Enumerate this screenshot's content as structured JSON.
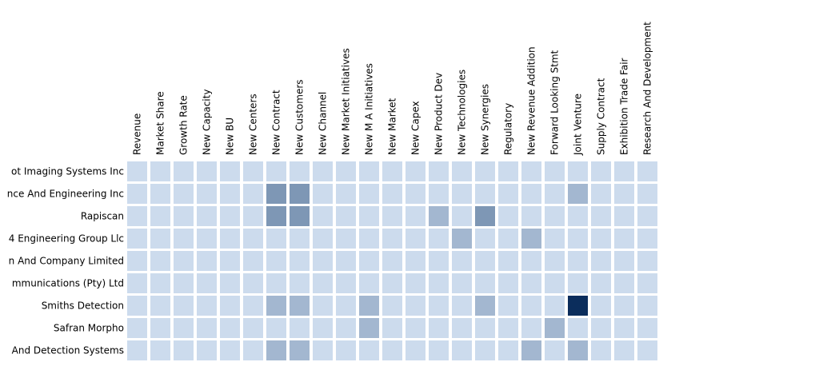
{
  "chart_data": {
    "type": "heatmap",
    "title": "",
    "xlabel": "",
    "ylabel": "",
    "columns": [
      "Revenue",
      "Market Share",
      "Growth Rate",
      "New Capacity",
      "New BU",
      "New Centers",
      "New Contract",
      "New Customers",
      "New Channel",
      "New Market Initiatives",
      "New M A Initiatives",
      "New Market",
      "New Capex",
      "New Product Dev",
      "New Technologies",
      "New Synergies",
      "Regulatory",
      "New Revenue Addition",
      "Forward Looking Stmt",
      "Joint Venture",
      "Supply Contract",
      "Exhibition Trade Fair",
      "Research And Development"
    ],
    "rows": [
      "ot Imaging Systems Inc",
      "nce And Engineering Inc",
      "Rapiscan",
      "4 Engineering Group Llc",
      "n And Company Limited",
      "mmunications (Pty) Ltd",
      "Smiths Detection",
      "Safran Morpho",
      "And Detection Systems"
    ],
    "values": [
      [
        0,
        0,
        0,
        0,
        0,
        0,
        0,
        0,
        0,
        0,
        0,
        0,
        0,
        0,
        0,
        0,
        0,
        0,
        0,
        0,
        0,
        0,
        0
      ],
      [
        0,
        0,
        0,
        0,
        0,
        0,
        2,
        2,
        0,
        0,
        0,
        0,
        0,
        0,
        0,
        0,
        0,
        0,
        0,
        1,
        0,
        0,
        0
      ],
      [
        0,
        0,
        0,
        0,
        0,
        0,
        2,
        2,
        0,
        0,
        0,
        0,
        0,
        1,
        0,
        2,
        0,
        0,
        0,
        0,
        0,
        0,
        0
      ],
      [
        0,
        0,
        0,
        0,
        0,
        0,
        0,
        0,
        0,
        0,
        0,
        0,
        0,
        0,
        1,
        0,
        0,
        1,
        0,
        0,
        0,
        0,
        0
      ],
      [
        0,
        0,
        0,
        0,
        0,
        0,
        0,
        0,
        0,
        0,
        0,
        0,
        0,
        0,
        0,
        0,
        0,
        0,
        0,
        0,
        0,
        0,
        0
      ],
      [
        0,
        0,
        0,
        0,
        0,
        0,
        0,
        0,
        0,
        0,
        0,
        0,
        0,
        0,
        0,
        0,
        0,
        0,
        0,
        0,
        0,
        0,
        0
      ],
      [
        0,
        0,
        0,
        0,
        0,
        0,
        1,
        1,
        0,
        0,
        1,
        0,
        0,
        0,
        0,
        1,
        0,
        0,
        0,
        5,
        0,
        0,
        0
      ],
      [
        0,
        0,
        0,
        0,
        0,
        0,
        0,
        0,
        0,
        0,
        1,
        0,
        0,
        0,
        0,
        0,
        0,
        0,
        1,
        0,
        0,
        0,
        0
      ],
      [
        0,
        0,
        0,
        0,
        0,
        0,
        1,
        1,
        0,
        0,
        0,
        0,
        0,
        0,
        0,
        0,
        0,
        1,
        0,
        1,
        0,
        0,
        0
      ]
    ],
    "color_scale": {
      "0": "#ccdbed",
      "1": "#a3b7d0",
      "2": "#7e97b5",
      "5": "#0b2d5c"
    },
    "legend": false,
    "grid": false
  }
}
